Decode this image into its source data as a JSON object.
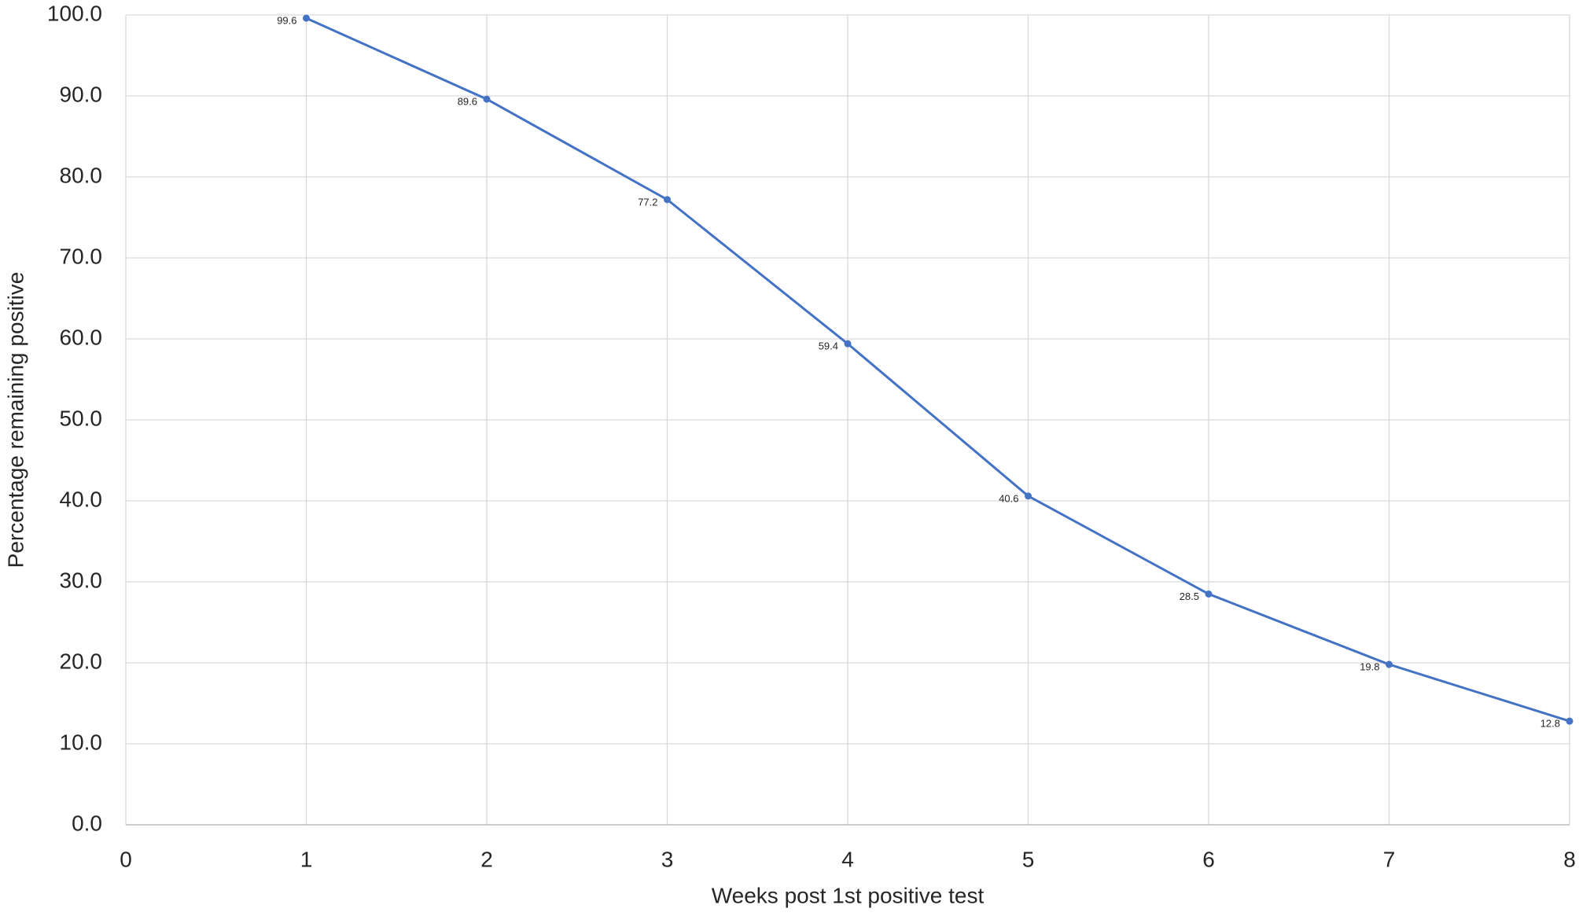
{
  "chart_data": {
    "type": "line",
    "x_label": "Weeks post 1st positive test",
    "y_label": "Percentage remaining positive",
    "x": [
      1,
      2,
      3,
      4,
      5,
      6,
      7,
      8
    ],
    "series": [
      {
        "color": "#4472c4",
        "values": [
          99.6,
          89.6,
          77.2,
          59.4,
          40.6,
          28.5,
          19.8,
          12.8
        ]
      }
    ],
    "xlim": [
      0,
      8
    ],
    "xticks": [
      0,
      1,
      2,
      3,
      4,
      5,
      6,
      7,
      8
    ],
    "ylim": [
      0,
      100
    ],
    "yticks": [
      {
        "value": 0,
        "label": "0.0"
      },
      {
        "value": 10,
        "label": "10.0"
      },
      {
        "value": 20,
        "label": "20.0"
      },
      {
        "value": 30,
        "label": "30.0"
      },
      {
        "value": 40,
        "label": "40.0"
      },
      {
        "value": 50,
        "label": "50.0"
      },
      {
        "value": 60,
        "label": "60.0"
      },
      {
        "value": 70,
        "label": "70.0"
      },
      {
        "value": 80,
        "label": "80.0"
      },
      {
        "value": 90,
        "label": "90.0"
      },
      {
        "value": 100,
        "label": "100.0"
      }
    ],
    "grid": true
  }
}
